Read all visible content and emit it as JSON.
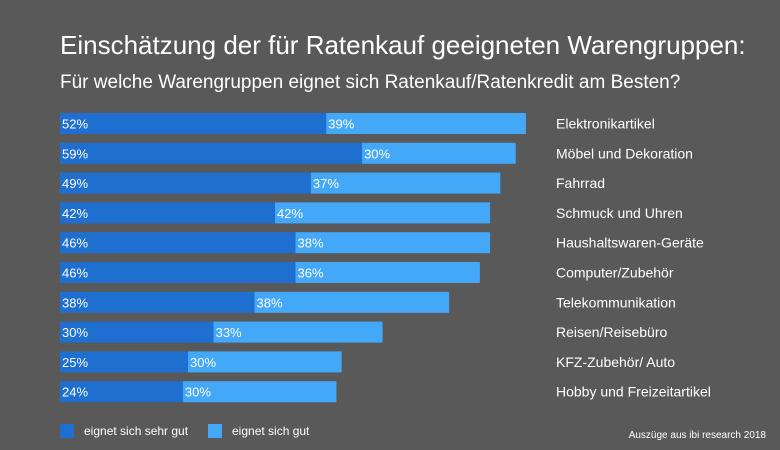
{
  "colors": {
    "background": "#595959",
    "series1": "#1f6fd1",
    "series2": "#44a8f9",
    "text": "#ffffff"
  },
  "title": "Einschätzung der für Ratenkauf geeigneten Warengruppen:",
  "subtitle": "Für welche Warengruppen eignet sich Ratenkauf/Ratenkredit am Besten?",
  "legend": {
    "series1_label": "eignet sich sehr gut",
    "series2_label": "eignet sich gut"
  },
  "source": "Auszüge aus ibi research 2018",
  "chart_data": {
    "type": "bar",
    "orientation": "horizontal",
    "stacked": true,
    "categories": [
      "Elektronikartikel",
      "Möbel und Dekoration",
      "Fahrrad",
      "Schmuck und Uhren",
      "Haushaltswaren-Geräte",
      "Computer/Zubehör",
      "Telekommunikation",
      "Reisen/Reisebüro",
      "KFZ-Zubehör/ Auto",
      "Hobby und Freizeitartikel"
    ],
    "series": [
      {
        "name": "eignet sich sehr gut",
        "values": [
          52,
          59,
          49,
          42,
          46,
          46,
          38,
          30,
          25,
          24
        ],
        "labels": [
          "52%",
          "59%",
          "49%",
          "42%",
          "46%",
          "46%",
          "38%",
          "30%",
          "25%",
          "24%"
        ]
      },
      {
        "name": "eignet sich gut",
        "values": [
          39,
          30,
          37,
          42,
          38,
          36,
          38,
          33,
          30,
          30
        ],
        "labels": [
          "39%",
          "30%",
          "37%",
          "42%",
          "38%",
          "36%",
          "38%",
          "33%",
          "30%",
          "30%"
        ]
      }
    ],
    "xlim": [
      0,
      100
    ],
    "grid": false,
    "legend_position": "bottom-left"
  }
}
